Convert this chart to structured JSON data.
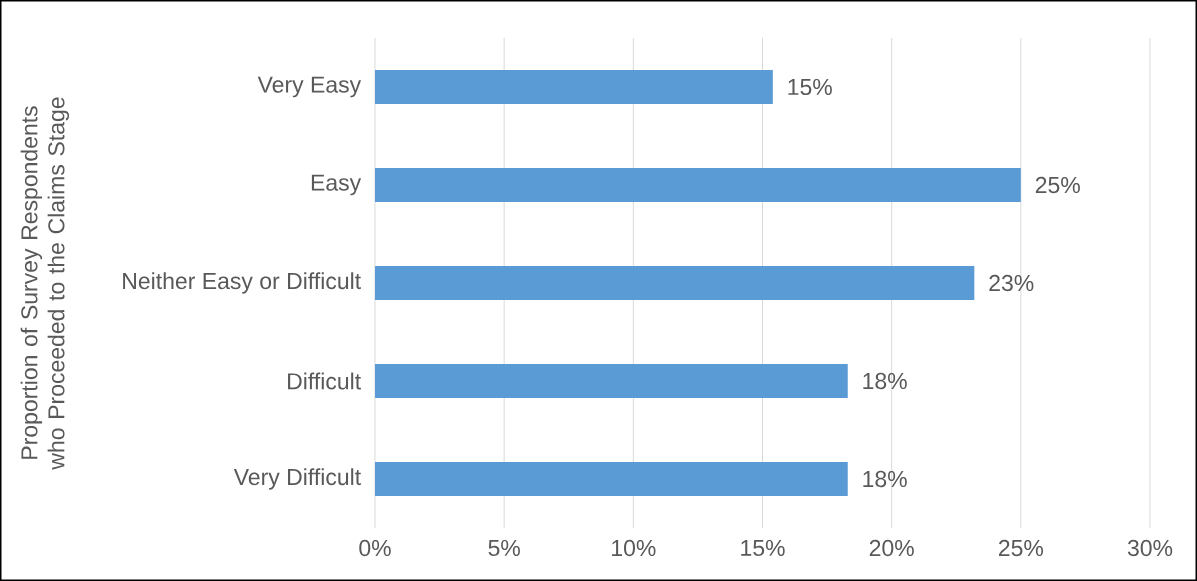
{
  "chart_data": {
    "type": "bar",
    "orientation": "horizontal",
    "ylabel": "Proportion of Survey Respondents who Proceeded to the Claims Stage",
    "categories": [
      "Very Easy",
      "Easy",
      "Neither Easy or Difficult",
      "Difficult",
      "Very Difficult"
    ],
    "values": [
      15.4,
      25,
      23.2,
      18.3,
      18.3
    ],
    "value_labels": [
      "15%",
      "25%",
      "23%",
      "18%",
      "18%"
    ],
    "color": "#5b9bd5",
    "xlim": [
      0,
      30
    ],
    "xticks": [
      {
        "value": 0,
        "label": "0%"
      },
      {
        "value": 5,
        "label": "5%"
      },
      {
        "value": 10,
        "label": "10%"
      },
      {
        "value": 15,
        "label": "15%"
      },
      {
        "value": 20,
        "label": "20%"
      },
      {
        "value": 25,
        "label": "25%"
      },
      {
        "value": 30,
        "label": "30%"
      }
    ],
    "grid": "x"
  }
}
